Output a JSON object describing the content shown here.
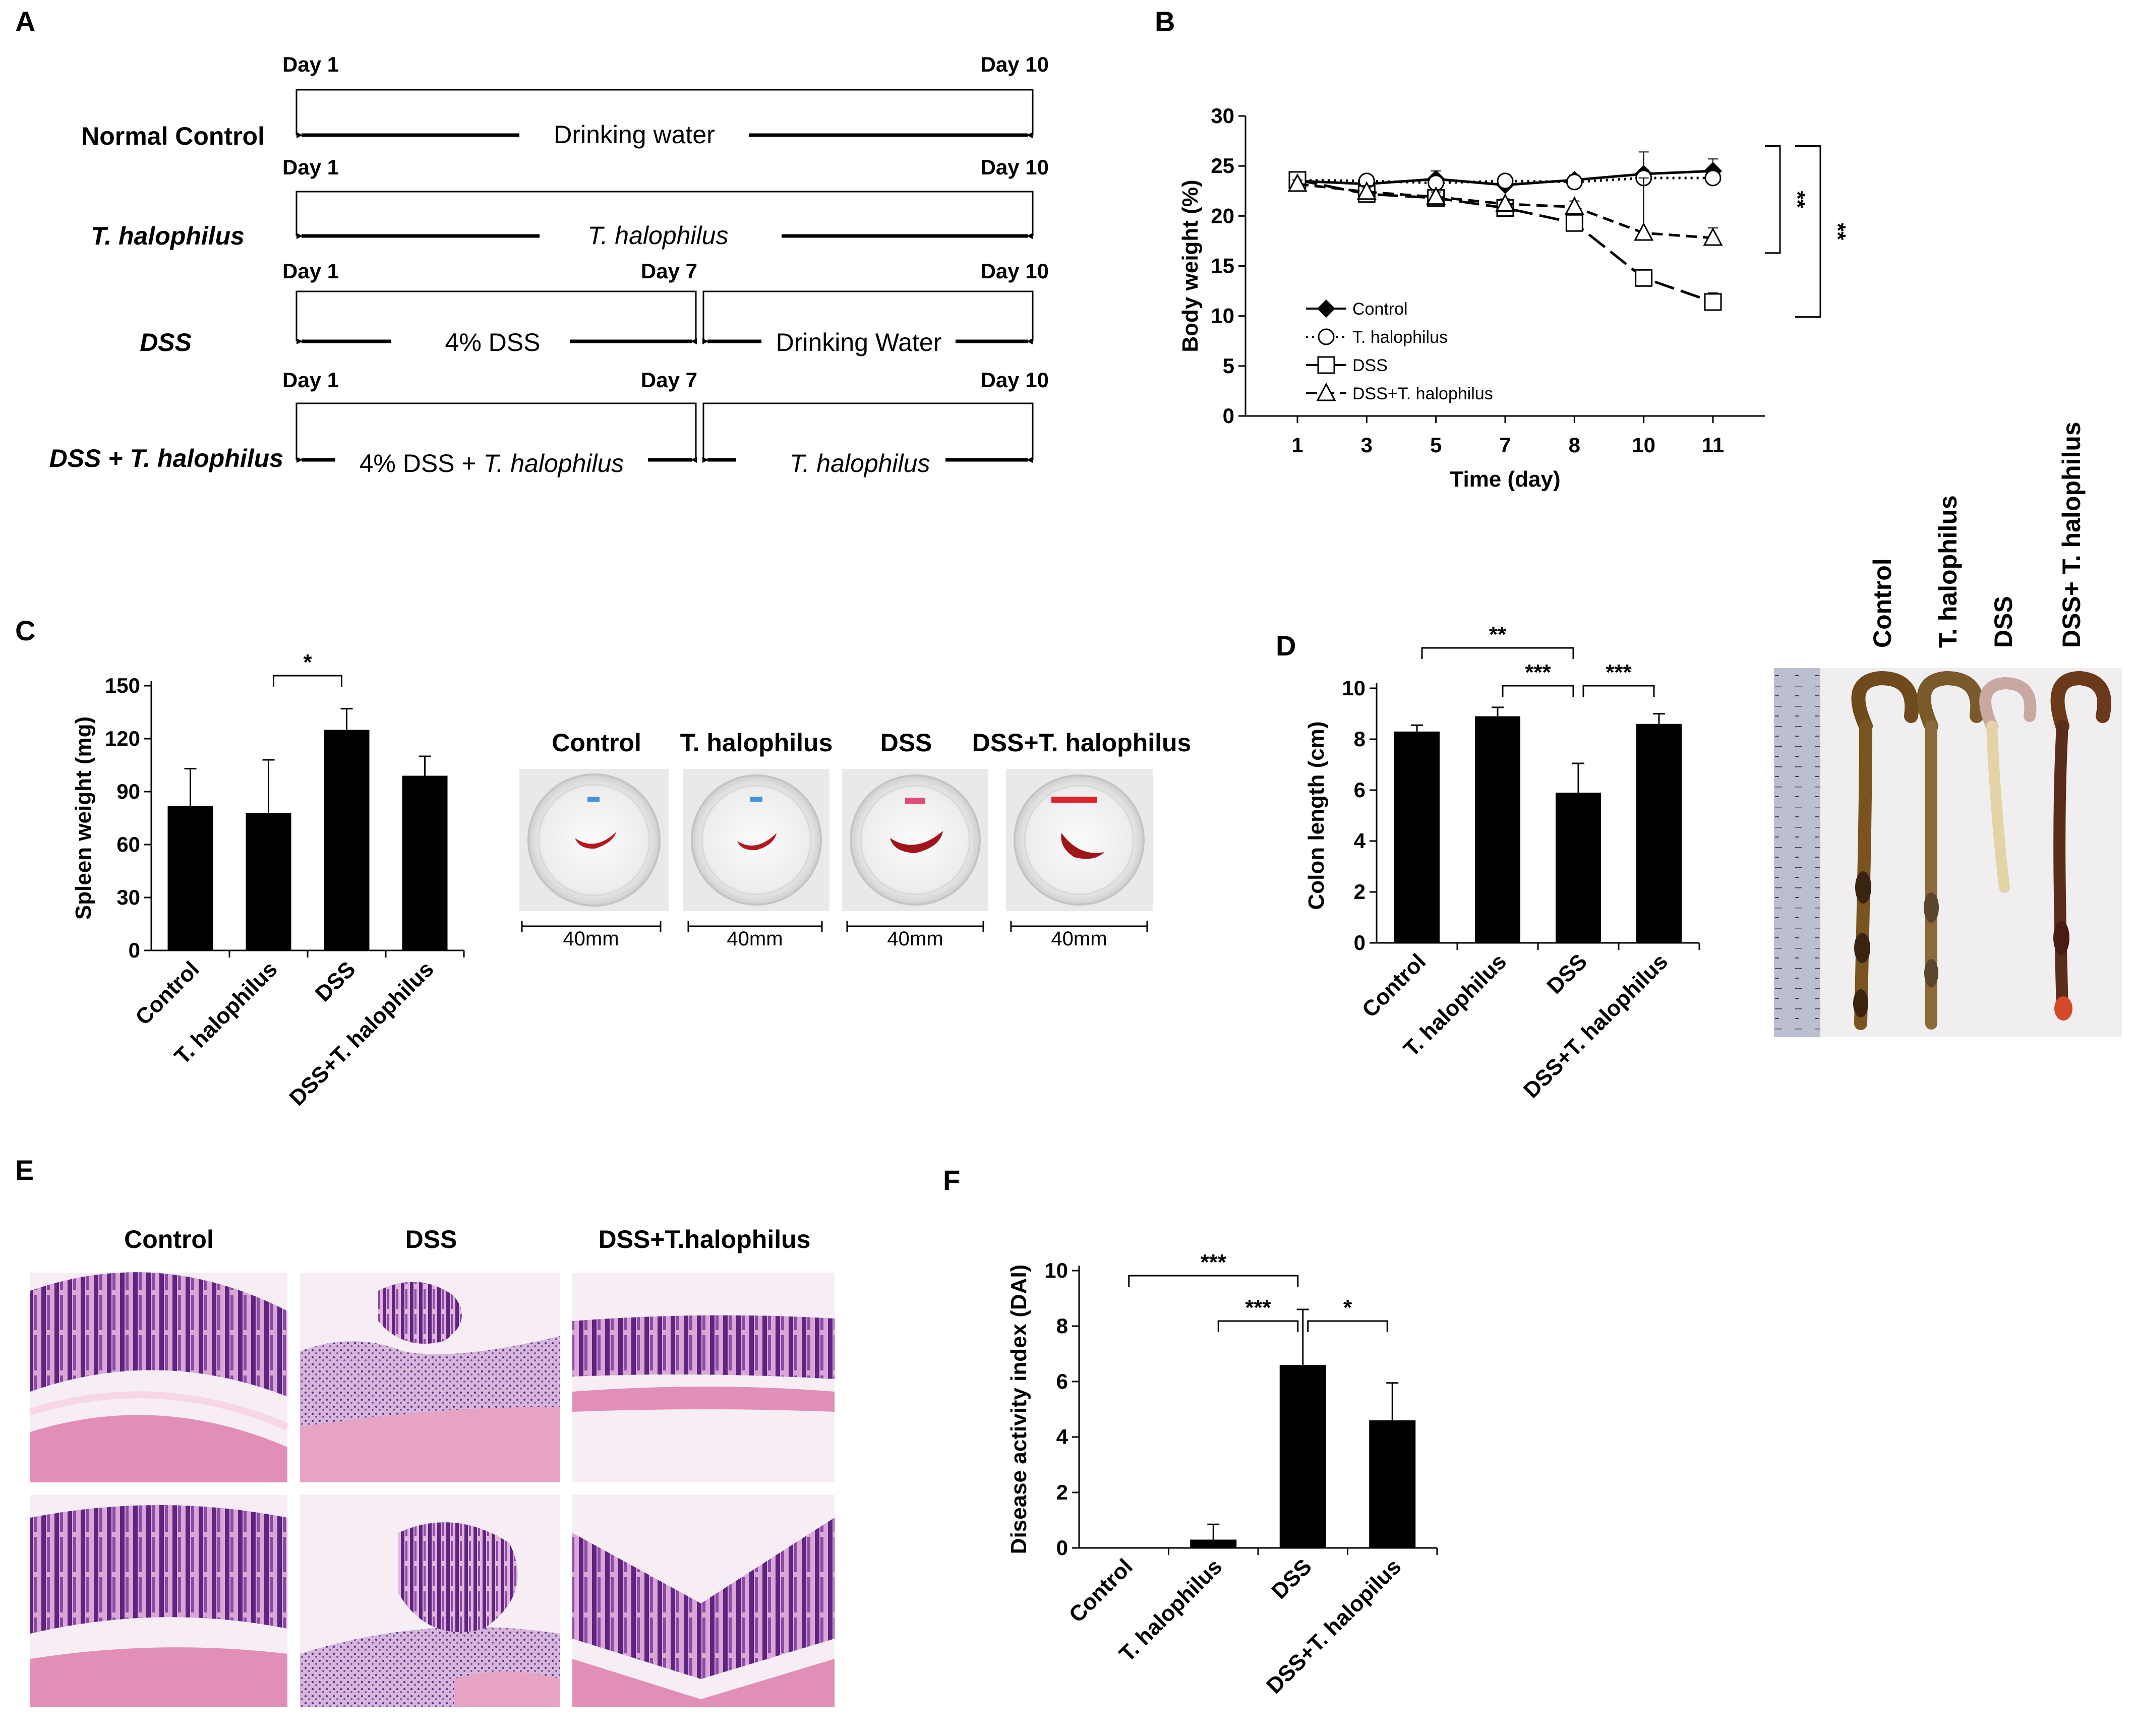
{
  "panels": {
    "a": "A",
    "b": "B",
    "c": "C",
    "d": "D",
    "e": "E",
    "f": "F"
  },
  "schematic": {
    "rows": [
      {
        "group": "Normal Control",
        "italic": false,
        "day_start": "Day 1",
        "day_end": "Day 10",
        "segments": [
          {
            "text": "Drinking water",
            "italic": false
          }
        ]
      },
      {
        "group": "T. halophilus",
        "italic": true,
        "day_start": "Day 1",
        "day_end": "Day 10",
        "segments": [
          {
            "text": "T. halophilus",
            "italic": true
          }
        ]
      },
      {
        "group": "DSS",
        "italic": true,
        "day_start": "Day 1",
        "day_mid": "Day 7",
        "day_end": "Day 10",
        "segments": [
          {
            "text": "4% DSS",
            "italic": false
          },
          {
            "text": "Drinking Water",
            "italic": false
          }
        ]
      },
      {
        "group": "DSS + T. halophilus",
        "italic": true,
        "day_start": "Day 1",
        "day_mid": "Day 7",
        "day_end": "Day 10",
        "segments": [
          {
            "text_a": "4% DSS + ",
            "text_b": "T. halophilus"
          },
          {
            "text": "T. halophilus",
            "italic": true
          }
        ]
      }
    ]
  },
  "chart_data": [
    {
      "id": "body-weight",
      "type": "line",
      "xlabel": "Time (day)",
      "ylabel": "Body weight (%)",
      "ylim": [
        0,
        30
      ],
      "yticks": [
        0,
        5,
        10,
        15,
        20,
        25,
        30
      ],
      "categories": [
        "1",
        "3",
        "5",
        "7",
        "8",
        "10",
        "11"
      ],
      "series": [
        {
          "name": "Control",
          "marker": "diamond",
          "dash": "solid",
          "values": [
            23.5,
            23.2,
            23.7,
            23.1,
            23.6,
            24.2,
            24.5
          ],
          "errors": [
            0.5,
            0.5,
            0.8,
            0.5,
            0.5,
            2.2,
            1.2
          ]
        },
        {
          "name": "T. halophilus",
          "marker": "circle",
          "dash": "dotted",
          "values": [
            23.6,
            23.5,
            23.3,
            23.5,
            23.4,
            23.8,
            23.8
          ],
          "errors": [
            0.4,
            0.4,
            0.5,
            0.5,
            0.4,
            0.8,
            0.6
          ]
        },
        {
          "name": "DSS",
          "marker": "square",
          "dash": "longdash",
          "values": [
            23.6,
            22.2,
            21.8,
            20.8,
            19.3,
            13.8,
            11.4
          ],
          "errors": [
            0.4,
            0.5,
            0.5,
            0.5,
            0.6,
            0.8,
            0.9
          ]
        },
        {
          "name": "DSS+T. halophilus",
          "marker": "triangle",
          "dash": "dashed",
          "values": [
            23.2,
            22.4,
            21.9,
            21.2,
            20.9,
            18.3,
            17.8
          ],
          "errors": [
            0.4,
            0.5,
            0.5,
            0.5,
            0.6,
            5.5,
            1.0
          ]
        }
      ],
      "significance": [
        {
          "label": "**"
        },
        {
          "label": "**"
        }
      ]
    },
    {
      "id": "spleen-weight",
      "type": "bar",
      "ylabel": "Spleen weight (mg)",
      "ylim": [
        0,
        150
      ],
      "yticks": [
        0,
        30,
        60,
        90,
        120,
        150
      ],
      "categories": [
        "Control",
        "T. halophilus",
        "DSS",
        "DSS+T. halophilus"
      ],
      "values": [
        82,
        78,
        125,
        99
      ],
      "errors": [
        21,
        30,
        12,
        11
      ],
      "significance": [
        {
          "from": 1,
          "to": 2,
          "label": "*"
        }
      ]
    },
    {
      "id": "colon-length",
      "type": "bar",
      "ylabel": "Colon length (cm)",
      "ylim": [
        0,
        10
      ],
      "yticks": [
        0,
        2,
        4,
        6,
        8,
        10
      ],
      "categories": [
        "Control",
        "T. halophilus",
        "DSS",
        "DSS+T. halophilus"
      ],
      "values": [
        8.3,
        8.9,
        5.9,
        8.6
      ],
      "errors": [
        0.25,
        0.35,
        1.15,
        0.4
      ],
      "significance": [
        {
          "from": 0,
          "to": 2,
          "label": "**"
        },
        {
          "from": 1,
          "to": 2,
          "label": "***"
        },
        {
          "from": 2,
          "to": 3,
          "label": "***"
        }
      ]
    },
    {
      "id": "dai",
      "type": "bar",
      "ylabel": "Disease activity index (DAI)",
      "ylim": [
        0,
        10
      ],
      "yticks": [
        0,
        2,
        4,
        6,
        8,
        10
      ],
      "categories": [
        "Control",
        "T. halophilus",
        "DSS",
        "DSS+T. halopilus"
      ],
      "values": [
        0,
        0.3,
        6.6,
        4.6
      ],
      "errors": [
        0,
        0.55,
        2.0,
        1.35
      ],
      "significance": [
        {
          "from": 0,
          "to": 2,
          "label": "***"
        },
        {
          "from": 1,
          "to": 2,
          "label": "***"
        },
        {
          "from": 2,
          "to": 3,
          "label": "*"
        }
      ]
    }
  ],
  "spleen_photos": {
    "titles": [
      "Control",
      "T. halophilus",
      "DSS",
      "DSS+T. halophilus"
    ],
    "scale": [
      "40mm",
      "40mm",
      "40mm",
      "40mm"
    ]
  },
  "colon_photo": {
    "labels": [
      "Control",
      "T. halophilus",
      "DSS",
      "DSS+ T. halophilus"
    ]
  },
  "histology": {
    "titles": [
      "Control",
      "DSS",
      "DSS+T.halophilus"
    ]
  },
  "colors": {
    "ink": "#000000",
    "he_pink": "#e7a3c4",
    "he_purple": "#6a2c86",
    "bg": "#ffffff"
  }
}
